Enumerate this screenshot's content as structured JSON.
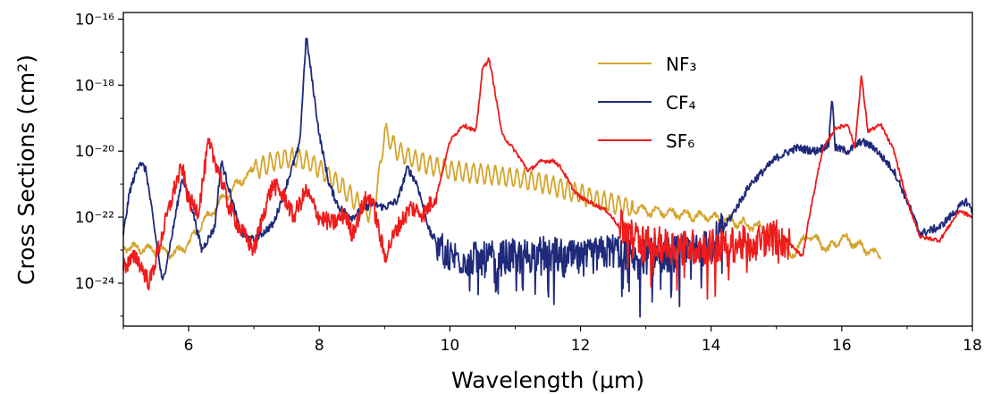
{
  "chart_data": {
    "type": "line",
    "xlabel": "Wavelength (μm)",
    "ylabel": "Cross Sections (cm²)",
    "x_ticks": [
      "6",
      "8",
      "10",
      "12",
      "14",
      "16",
      "18"
    ],
    "y_ticks": [
      "10⁻¹⁶",
      "10⁻¹⁸",
      "10⁻²⁰",
      "10⁻²²",
      "10⁻²⁴"
    ],
    "xlim": [
      5,
      18
    ],
    "ylim_log10": [
      -25.3,
      -15.8
    ],
    "yscale": "log",
    "legend_placement": "upper-center",
    "series": [
      {
        "name": "NF₃",
        "color": "#d4a52e",
        "x_range": [
          5,
          16.6
        ],
        "control_points": [
          [
            5.0,
            -22.9
          ],
          [
            5.5,
            -23.0
          ],
          [
            5.8,
            -23.1
          ],
          [
            6.0,
            -22.8
          ],
          [
            6.2,
            -22.2
          ],
          [
            6.5,
            -21.5
          ],
          [
            6.8,
            -20.9
          ],
          [
            7.0,
            -20.6
          ],
          [
            7.3,
            -20.3
          ],
          [
            7.6,
            -20.2
          ],
          [
            7.8,
            -20.3
          ],
          [
            8.0,
            -20.5
          ],
          [
            8.3,
            -21.0
          ],
          [
            8.6,
            -21.6
          ],
          [
            8.8,
            -21.9
          ],
          [
            8.9,
            -21.0
          ],
          [
            9.0,
            -19.4
          ],
          [
            9.2,
            -20.0
          ],
          [
            9.5,
            -20.3
          ],
          [
            10.0,
            -20.6
          ],
          [
            10.5,
            -20.7
          ],
          [
            11.0,
            -20.8
          ],
          [
            11.5,
            -21.0
          ],
          [
            12.0,
            -21.3
          ],
          [
            12.5,
            -21.6
          ],
          [
            13.0,
            -21.8
          ],
          [
            13.5,
            -21.9
          ],
          [
            14.0,
            -22.0
          ],
          [
            14.5,
            -22.2
          ],
          [
            15.0,
            -22.4
          ],
          [
            15.2,
            -23.2
          ],
          [
            15.5,
            -22.5
          ],
          [
            15.8,
            -23.0
          ],
          [
            16.0,
            -22.6
          ],
          [
            16.3,
            -22.9
          ],
          [
            16.6,
            -23.2
          ]
        ]
      },
      {
        "name": "CF₄",
        "color": "#1f2a7a",
        "x_range": [
          5,
          18
        ],
        "control_points": [
          [
            5.0,
            -22.5
          ],
          [
            5.1,
            -21.2
          ],
          [
            5.25,
            -20.3
          ],
          [
            5.35,
            -20.6
          ],
          [
            5.45,
            -22.0
          ],
          [
            5.6,
            -24.0
          ],
          [
            5.75,
            -22.5
          ],
          [
            5.9,
            -20.8
          ],
          [
            6.05,
            -21.7
          ],
          [
            6.2,
            -23.0
          ],
          [
            6.4,
            -22.3
          ],
          [
            6.5,
            -20.3
          ],
          [
            6.6,
            -21.0
          ],
          [
            6.8,
            -22.5
          ],
          [
            7.0,
            -22.7
          ],
          [
            7.3,
            -22.2
          ],
          [
            7.5,
            -21.0
          ],
          [
            7.7,
            -19.8
          ],
          [
            7.8,
            -16.5
          ],
          [
            7.9,
            -18.0
          ],
          [
            8.0,
            -19.5
          ],
          [
            8.15,
            -21.0
          ],
          [
            8.3,
            -21.7
          ],
          [
            8.5,
            -22.0
          ],
          [
            8.8,
            -21.6
          ],
          [
            9.0,
            -21.7
          ],
          [
            9.2,
            -21.5
          ],
          [
            9.35,
            -20.5
          ],
          [
            9.5,
            -21.0
          ],
          [
            9.7,
            -22.5
          ],
          [
            10.0,
            -23.2
          ],
          [
            10.5,
            -23.3
          ],
          [
            11.0,
            -23.2
          ],
          [
            11.5,
            -23.1
          ],
          [
            12.0,
            -23.3
          ],
          [
            12.5,
            -23.0
          ],
          [
            13.0,
            -23.2
          ],
          [
            13.5,
            -23.1
          ],
          [
            14.0,
            -22.9
          ],
          [
            14.3,
            -22.0
          ],
          [
            14.6,
            -21.0
          ],
          [
            15.0,
            -20.2
          ],
          [
            15.3,
            -19.9
          ],
          [
            15.6,
            -20.0
          ],
          [
            15.8,
            -19.8
          ],
          [
            15.85,
            -18.3
          ],
          [
            15.9,
            -19.9
          ],
          [
            16.1,
            -20.0
          ],
          [
            16.3,
            -19.7
          ],
          [
            16.5,
            -19.9
          ],
          [
            16.8,
            -20.6
          ],
          [
            17.0,
            -21.5
          ],
          [
            17.2,
            -22.5
          ],
          [
            17.5,
            -22.3
          ],
          [
            17.9,
            -21.5
          ],
          [
            18.0,
            -21.8
          ]
        ]
      },
      {
        "name": "SF₆",
        "color": "#ee1c1c",
        "x_range": [
          5,
          18
        ],
        "control_points": [
          [
            5.0,
            -23.5
          ],
          [
            5.2,
            -23.2
          ],
          [
            5.4,
            -24.0
          ],
          [
            5.6,
            -22.5
          ],
          [
            5.8,
            -21.0
          ],
          [
            5.9,
            -20.5
          ],
          [
            6.0,
            -21.5
          ],
          [
            6.15,
            -21.8
          ],
          [
            6.3,
            -19.8
          ],
          [
            6.45,
            -20.5
          ],
          [
            6.6,
            -21.6
          ],
          [
            6.8,
            -22.4
          ],
          [
            7.0,
            -23.0
          ],
          [
            7.2,
            -21.5
          ],
          [
            7.3,
            -21.0
          ],
          [
            7.5,
            -21.5
          ],
          [
            7.6,
            -22.0
          ],
          [
            7.8,
            -21.2
          ],
          [
            8.0,
            -22.0
          ],
          [
            8.2,
            -22.2
          ],
          [
            8.4,
            -21.9
          ],
          [
            8.5,
            -22.5
          ],
          [
            8.7,
            -21.5
          ],
          [
            8.8,
            -21.4
          ],
          [
            9.0,
            -23.2
          ],
          [
            9.2,
            -22.3
          ],
          [
            9.4,
            -21.7
          ],
          [
            9.6,
            -21.9
          ],
          [
            9.8,
            -21.3
          ],
          [
            10.0,
            -19.7
          ],
          [
            10.2,
            -19.2
          ],
          [
            10.4,
            -19.4
          ],
          [
            10.5,
            -17.5
          ],
          [
            10.6,
            -17.2
          ],
          [
            10.7,
            -18.3
          ],
          [
            10.8,
            -19.5
          ],
          [
            11.0,
            -20.0
          ],
          [
            11.2,
            -20.6
          ],
          [
            11.4,
            -20.3
          ],
          [
            11.6,
            -20.3
          ],
          [
            11.7,
            -20.5
          ],
          [
            11.9,
            -21.2
          ],
          [
            12.0,
            -21.4
          ],
          [
            12.2,
            -21.6
          ],
          [
            12.4,
            -21.8
          ],
          [
            12.6,
            -22.3
          ],
          [
            13.0,
            -22.8
          ],
          [
            13.5,
            -22.9
          ],
          [
            14.0,
            -22.9
          ],
          [
            14.5,
            -22.8
          ],
          [
            15.0,
            -22.6
          ],
          [
            15.2,
            -22.8
          ],
          [
            15.4,
            -23.2
          ],
          [
            15.5,
            -22.0
          ],
          [
            15.7,
            -20.0
          ],
          [
            15.9,
            -19.3
          ],
          [
            16.1,
            -19.2
          ],
          [
            16.2,
            -19.9
          ],
          [
            16.3,
            -17.7
          ],
          [
            16.4,
            -19.4
          ],
          [
            16.6,
            -19.2
          ],
          [
            16.8,
            -20.0
          ],
          [
            17.0,
            -21.5
          ],
          [
            17.2,
            -22.6
          ],
          [
            17.5,
            -22.7
          ],
          [
            17.8,
            -21.8
          ],
          [
            18.0,
            -22.0
          ]
        ]
      }
    ]
  }
}
